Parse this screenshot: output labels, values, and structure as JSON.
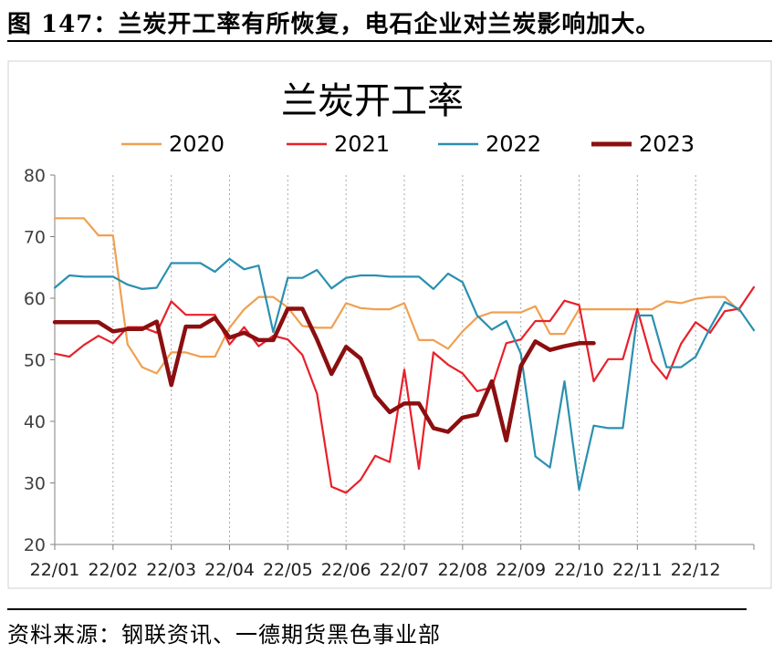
{
  "figure_title": "图 147：兰炭开工率有所恢复，电石企业对兰炭影响加大。",
  "source": "资料来源：钢联资讯、一德期货黑色事业部",
  "chart_data": {
    "type": "line",
    "title": "兰炭开工率",
    "xlabel": "",
    "ylabel": "",
    "ylim": [
      20,
      80
    ],
    "yticks": [
      20,
      30,
      40,
      50,
      60,
      70,
      80
    ],
    "grid": "vertical-dotted",
    "legend_position": "top",
    "x_tick_labels": [
      "22/01",
      "22/02",
      "22/03",
      "22/04",
      "22/05",
      "22/06",
      "22/07",
      "22/08",
      "22/09",
      "22/10",
      "22/11",
      "22/12"
    ],
    "series": [
      {
        "name": "2020",
        "color": "#F0A050",
        "x": [
          1,
          2,
          3,
          4,
          5,
          6,
          7,
          8,
          9,
          10,
          11,
          12,
          13,
          14,
          15,
          16,
          17,
          18,
          19,
          20,
          21,
          22,
          23,
          24,
          25,
          26,
          27,
          28,
          29,
          30,
          31,
          32,
          33,
          34,
          35,
          36,
          37,
          38,
          39,
          40,
          41,
          42,
          43,
          44,
          45,
          46,
          47,
          48
        ],
        "values": [
          73,
          73,
          73,
          70.2,
          70.2,
          52.5,
          48.8,
          47.8,
          51.2,
          51.2,
          50.5,
          50.5,
          55.2,
          58.2,
          60.2,
          60.2,
          58.5,
          55.5,
          55.2,
          55.2,
          59.2,
          58.4,
          58.2,
          58.2,
          59.2,
          53.2,
          53.2,
          51.8,
          54.6,
          56.9,
          57.7,
          57.7,
          57.7,
          58.7,
          54.2,
          54.2,
          58.2,
          58.2,
          58.2,
          58.2,
          58.2,
          58.2,
          59.5,
          59.2,
          59.9,
          60.2,
          60.2,
          57.9
        ]
      },
      {
        "name": "2021",
        "color": "#E8202A",
        "x": [
          1,
          2,
          3,
          4,
          5,
          6,
          7,
          8,
          9,
          10,
          11,
          12,
          13,
          14,
          15,
          16,
          17,
          18,
          19,
          20,
          21,
          22,
          23,
          24,
          25,
          26,
          27,
          28,
          29,
          30,
          31,
          32,
          33,
          34,
          35,
          36,
          37,
          38,
          39,
          40,
          41,
          42,
          43,
          44,
          45,
          46,
          47,
          48,
          49
        ],
        "values": [
          51,
          50.5,
          52.4,
          53.9,
          52.7,
          55.3,
          55.3,
          54.4,
          59.5,
          57.3,
          57.3,
          57.3,
          52.5,
          55.3,
          52.2,
          53.9,
          53.3,
          50.8,
          44.5,
          29.4,
          28.4,
          30.5,
          34.4,
          33.4,
          48.4,
          32.3,
          51.2,
          49.2,
          47.8,
          44.9,
          45.5,
          52.7,
          53.3,
          56.3,
          56.3,
          59.6,
          58.9,
          46.5,
          50.1,
          50.1,
          58.2,
          49.8,
          46.9,
          52.6,
          56.1,
          54.4,
          57.9,
          58.3,
          61.8
        ]
      },
      {
        "name": "2022",
        "color": "#2A90B0",
        "x": [
          1,
          2,
          3,
          4,
          5,
          6,
          7,
          8,
          9,
          10,
          11,
          12,
          13,
          14,
          15,
          16,
          17,
          18,
          19,
          20,
          21,
          22,
          23,
          24,
          25,
          26,
          27,
          28,
          29,
          30,
          31,
          32,
          33,
          34,
          35,
          36,
          37,
          38,
          39,
          40,
          41,
          42,
          43,
          44,
          45,
          46,
          47,
          48,
          49
        ],
        "values": [
          61.7,
          63.7,
          63.5,
          63.5,
          63.5,
          62.2,
          61.5,
          61.7,
          65.7,
          65.7,
          65.7,
          64.3,
          66.4,
          64.7,
          65.3,
          54.5,
          63.3,
          63.3,
          64.6,
          61.6,
          63.3,
          63.7,
          63.7,
          63.5,
          63.5,
          63.5,
          61.5,
          64,
          62.6,
          57.2,
          54.9,
          56.3,
          51,
          34.3,
          32.5,
          46.5,
          28.9,
          39.3,
          38.9,
          38.9,
          57.2,
          57.2,
          48.8,
          48.8,
          50.5,
          55.2,
          59.4,
          58.2,
          54.8
        ]
      },
      {
        "name": "2023",
        "color": "#8B0F10",
        "x": [
          1,
          2,
          3,
          4,
          5,
          6,
          7,
          8,
          9,
          10,
          11,
          12,
          13,
          14,
          15,
          16,
          17,
          18,
          19,
          20,
          21,
          22,
          23,
          24,
          25,
          26,
          27,
          28,
          29,
          30,
          31,
          32,
          33,
          34,
          35,
          36,
          37,
          38
        ],
        "values": [
          56.1,
          56.1,
          56.1,
          56.1,
          54.6,
          55,
          55,
          56.2,
          45.9,
          55.4,
          55.4,
          56.8,
          53.6,
          54.4,
          53.2,
          53.2,
          58.3,
          58.3,
          53.3,
          47.7,
          52.1,
          50.2,
          44.2,
          41.5,
          42.9,
          42.9,
          38.9,
          38.3,
          40.6,
          41.1,
          46.5,
          36.9,
          49,
          53,
          51.6,
          52.2,
          52.7,
          52.7
        ]
      }
    ]
  }
}
